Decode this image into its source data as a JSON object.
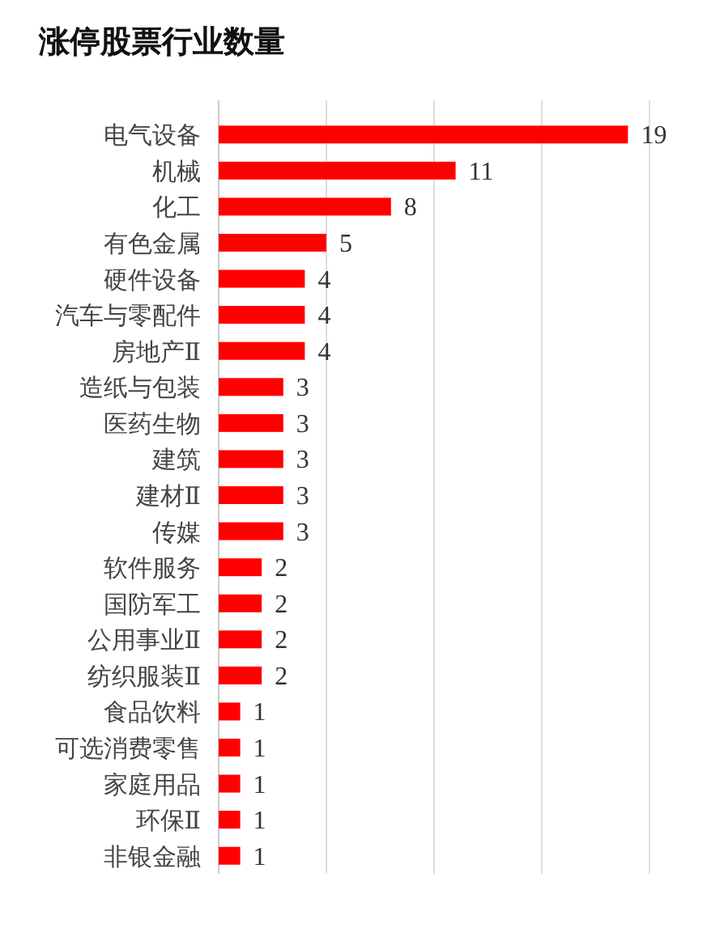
{
  "chart_data": {
    "type": "bar",
    "orientation": "horizontal",
    "title": "涨停股票行业数量",
    "categories": [
      "电气设备",
      "机械",
      "化工",
      "有色金属",
      "硬件设备",
      "汽车与零配件",
      "房地产Ⅱ",
      "造纸与包装",
      "医药生物",
      "建筑",
      "建材Ⅱ",
      "传媒",
      "软件服务",
      "国防军工",
      "公用事业Ⅱ",
      "纺织服装Ⅱ",
      "食品饮料",
      "可选消费零售",
      "家庭用品",
      "环保Ⅱ",
      "非银金融"
    ],
    "values": [
      19,
      11,
      8,
      5,
      4,
      4,
      4,
      3,
      3,
      3,
      3,
      3,
      2,
      2,
      2,
      2,
      1,
      1,
      1,
      1,
      1
    ],
    "color": "#ff0000",
    "xlim": [
      0,
      20
    ],
    "xticks": [
      {
        "value": 0,
        "label": null
      },
      {
        "value": 5,
        "label": null
      },
      {
        "value": 10,
        "label": null
      },
      {
        "value": 15,
        "label": null
      },
      {
        "value": 20,
        "label": null
      }
    ],
    "grid": "x",
    "tick_labels": "y",
    "data_labels": true
  }
}
